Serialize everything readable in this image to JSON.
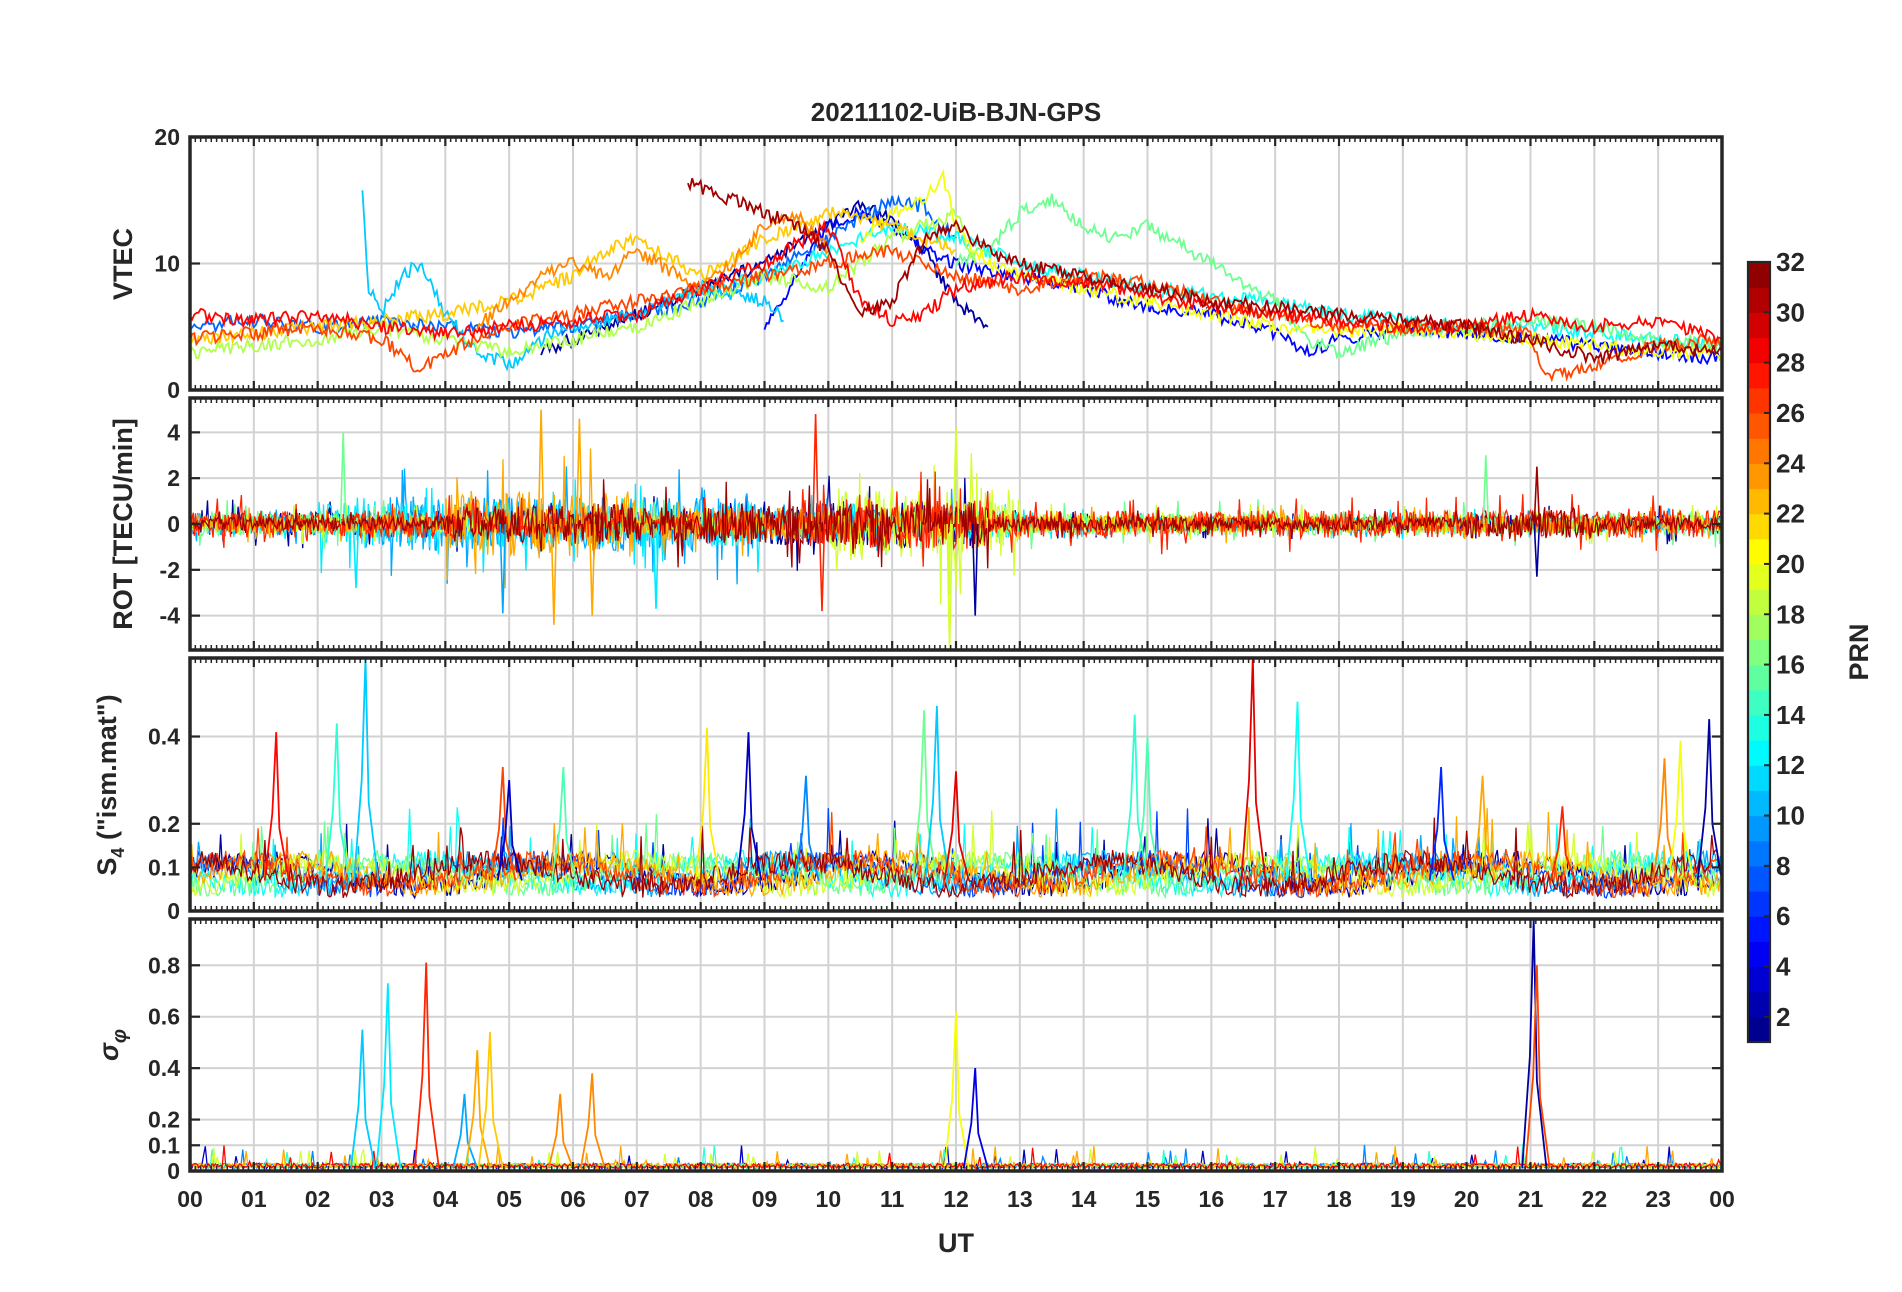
{
  "chart_data": {
    "type": "line",
    "title": "20211102-UiB-BJN-GPS",
    "xlabel": "UT",
    "x_ticks": [
      "00",
      "01",
      "02",
      "03",
      "04",
      "05",
      "06",
      "07",
      "08",
      "09",
      "10",
      "11",
      "12",
      "13",
      "14",
      "15",
      "16",
      "17",
      "18",
      "19",
      "20",
      "21",
      "22",
      "23",
      "00"
    ],
    "x_range_hours": [
      0,
      24
    ],
    "grid": true,
    "colorbar": {
      "label": "PRN",
      "range": [
        1,
        32
      ],
      "ticks": [
        "2",
        "4",
        "6",
        "8",
        "10",
        "12",
        "14",
        "16",
        "18",
        "20",
        "22",
        "24",
        "26",
        "28",
        "30",
        "32"
      ],
      "colormap": "jet",
      "placement": "right"
    },
    "panels": [
      {
        "id": "vtec",
        "ylabel": "VTEC",
        "ylim": [
          0,
          20
        ],
        "yticks": [
          "0",
          "10",
          "20"
        ],
        "series": [
          {
            "prn": 2,
            "x": [
              5.5,
              6,
              7,
              8,
              9,
              10,
              10.5,
              11,
              11.5,
              12,
              12.5
            ],
            "y": [
              3,
              4,
              6,
              8,
              10,
              13,
              14.5,
              13.5,
              11,
              7,
              5
            ]
          },
          {
            "prn": 5,
            "x": [
              9,
              9.5,
              10,
              10.5,
              11,
              11.5,
              12,
              13,
              14,
              15,
              16,
              17,
              17.5,
              18,
              19,
              20,
              21,
              22,
              23,
              24
            ],
            "y": [
              5,
              9,
              13,
              14,
              13,
              11,
              10,
              9,
              8,
              6.5,
              6,
              4.5,
              3,
              4,
              5,
              4.5,
              4,
              3.5,
              3,
              2.5
            ]
          },
          {
            "prn": 8,
            "x": [
              0,
              1,
              2,
              3,
              4,
              5,
              6,
              7,
              8,
              9,
              10,
              11,
              11.5,
              12
            ],
            "y": [
              5,
              5.5,
              5,
              5.5,
              5,
              4.5,
              5,
              6,
              7,
              9,
              12,
              15,
              14.5,
              12
            ]
          },
          {
            "prn": 11,
            "x": [
              2.7,
              2.8,
              3,
              3.3,
              3.6,
              4,
              4.5,
              5,
              5.5,
              6,
              7,
              8,
              9,
              9.3
            ],
            "y": [
              16,
              8,
              6,
              9,
              10,
              6,
              3,
              2,
              4,
              5,
              6,
              8,
              7,
              5.5
            ]
          },
          {
            "prn": 13,
            "x": [
              7.5,
              8,
              9,
              10,
              11,
              12,
              13,
              14,
              15,
              16,
              17,
              18,
              19,
              20,
              21,
              22,
              23,
              24
            ],
            "y": [
              7,
              8,
              9,
              11,
              13,
              12,
              10,
              9,
              8,
              7.5,
              7,
              6,
              5.5,
              5,
              5,
              4.5,
              4,
              3.5
            ]
          },
          {
            "prn": 16,
            "x": [
              12,
              12.5,
              13,
              13.5,
              14,
              14.5,
              15,
              16,
              17,
              17.5,
              18,
              19,
              20,
              21,
              22,
              23,
              24
            ],
            "y": [
              10,
              11,
              14,
              15,
              13,
              12,
              13,
              10,
              7,
              4,
              3,
              4.5,
              5,
              5.5,
              5,
              4,
              3.5
            ]
          },
          {
            "prn": 18,
            "x": [
              0,
              1,
              2,
              3,
              4,
              5,
              6,
              7,
              8,
              9,
              10,
              11,
              12,
              12.3
            ],
            "y": [
              3,
              3.5,
              4,
              5,
              4,
              3,
              4,
              5,
              7,
              9,
              8,
              12,
              14,
              10
            ]
          },
          {
            "prn": 20,
            "x": [
              10.5,
              11,
              11.5,
              11.8,
              12,
              12.5,
              13,
              14,
              15,
              16,
              17,
              18,
              19,
              20,
              21,
              22,
              23,
              24
            ],
            "y": [
              12,
              14,
              15,
              17,
              13,
              10,
              9,
              8,
              7,
              6,
              5,
              4.5,
              5,
              4.5,
              4,
              3.5,
              3,
              3
            ]
          },
          {
            "prn": 22,
            "x": [
              0,
              1,
              2,
              3,
              4,
              5,
              6,
              6.5,
              7,
              8,
              9,
              10,
              11,
              12
            ],
            "y": [
              4,
              4.5,
              5,
              5.5,
              6,
              7,
              9,
              11,
              12,
              9,
              12,
              14,
              13,
              11
            ]
          },
          {
            "prn": 24,
            "x": [
              4.5,
              5,
              5.5,
              6,
              6.5,
              7,
              8,
              8.5,
              9,
              9.5,
              10
            ],
            "y": [
              5,
              7,
              9,
              10,
              9,
              11,
              8,
              10,
              13,
              14,
              11
            ]
          },
          {
            "prn": 26,
            "x": [
              0,
              1,
              2,
              3,
              3.5,
              3.7,
              4,
              5,
              6,
              7,
              8,
              9,
              10,
              11,
              12,
              13,
              14,
              15,
              16,
              17,
              18,
              19,
              20,
              21,
              21.2,
              22,
              23,
              24
            ],
            "y": [
              4,
              4.5,
              5,
              4,
              2,
              2,
              3,
              5,
              6,
              7,
              8,
              9,
              10,
              11,
              9,
              8,
              9,
              8.5,
              7,
              6,
              5,
              5,
              5,
              4.5,
              1,
              2,
              3.5,
              4
            ]
          },
          {
            "prn": 28,
            "x": [
              0,
              1,
              2,
              3,
              4,
              5,
              6,
              7,
              8,
              9,
              10,
              10.5,
              11,
              11.5,
              12,
              13,
              14,
              15,
              16,
              17,
              18,
              19,
              20,
              21,
              22,
              23,
              24
            ],
            "y": [
              6,
              5.5,
              6,
              5,
              4.5,
              5,
              5.5,
              6,
              8,
              10,
              13,
              7,
              5.5,
              6,
              8,
              9,
              8.5,
              7.5,
              6.5,
              6,
              5.5,
              5,
              5,
              6,
              5,
              5.5,
              4
            ]
          },
          {
            "prn": 31,
            "x": [
              7.8,
              8,
              8.5,
              9,
              9.5,
              10,
              10.5,
              11,
              11.5,
              12,
              12.5,
              13,
              14,
              15,
              16,
              17,
              18,
              19,
              20,
              21,
              22,
              23,
              24
            ],
            "y": [
              16.5,
              16,
              15,
              14,
              13,
              11,
              6,
              7,
              12,
              13,
              11,
              10,
              9,
              8,
              7,
              6.5,
              6,
              5.5,
              5,
              4,
              2.5,
              3.5,
              3
            ]
          }
        ]
      },
      {
        "id": "rot",
        "ylabel": "ROT [TECU/min]",
        "ylim": [
          -5.5,
          5.5
        ],
        "yticks": [
          "-4",
          "-2",
          "0",
          "2",
          "4"
        ],
        "seed": 11,
        "series": [
          {
            "prn": 2,
            "amp": [
              [
                0,
                3,
                0.5
              ],
              [
                3,
                9,
                0.6
              ],
              [
                9,
                12.5,
                1.0
              ],
              [
                12.5,
                20,
                0.3
              ],
              [
                20,
                24,
                0.4
              ]
            ]
          },
          {
            "prn": 10,
            "amp": [
              [
                0,
                3,
                0.5
              ],
              [
                3,
                9,
                1.2
              ],
              [
                9,
                12,
                0.7
              ],
              [
                12,
                24,
                0.3
              ]
            ]
          },
          {
            "prn": 12,
            "amp": [
              [
                2,
                9,
                1.0
              ],
              [
                9,
                13,
                0.6
              ],
              [
                13,
                24,
                0.3
              ]
            ]
          },
          {
            "prn": 16,
            "amp": [
              [
                0,
                24,
                0.5
              ]
            ]
          },
          {
            "prn": 19,
            "amp": [
              [
                0,
                10,
                0.4
              ],
              [
                10,
                13,
                1.6
              ],
              [
                13,
                24,
                0.4
              ]
            ]
          },
          {
            "prn": 23,
            "amp": [
              [
                0,
                4,
                0.4
              ],
              [
                4,
                7,
                1.5
              ],
              [
                7,
                12,
                0.7
              ],
              [
                12,
                24,
                0.4
              ]
            ]
          },
          {
            "prn": 27,
            "amp": [
              [
                0,
                24,
                0.6
              ],
              [
                9.5,
                12.5,
                1.1
              ]
            ]
          },
          {
            "prn": 31,
            "amp": [
              [
                0,
                4,
                0.3
              ],
              [
                4,
                6,
                0.8
              ],
              [
                6,
                12.5,
                0.9
              ],
              [
                12.5,
                20,
                0.2
              ],
              [
                20,
                22,
                0.6
              ],
              [
                22,
                24,
                0.2
              ]
            ]
          }
        ],
        "spikes": [
          {
            "x": 2.4,
            "y": 4.0,
            "prn": 16
          },
          {
            "x": 2.6,
            "y": -2.8,
            "prn": 12
          },
          {
            "x": 4.9,
            "y": -3.9,
            "prn": 10
          },
          {
            "x": 5.5,
            "y": 5.0,
            "prn": 23
          },
          {
            "x": 5.7,
            "y": -4.4,
            "prn": 23
          },
          {
            "x": 6.1,
            "y": 4.6,
            "prn": 23
          },
          {
            "x": 6.3,
            "y": -4.0,
            "prn": 23
          },
          {
            "x": 7.3,
            "y": -3.7,
            "prn": 12
          },
          {
            "x": 9.8,
            "y": 4.8,
            "prn": 27
          },
          {
            "x": 9.9,
            "y": -3.8,
            "prn": 27
          },
          {
            "x": 11.9,
            "y": -5.5,
            "prn": 19
          },
          {
            "x": 12.0,
            "y": 4.2,
            "prn": 19
          },
          {
            "x": 12.3,
            "y": -4.0,
            "prn": 2
          },
          {
            "x": 20.3,
            "y": 3.0,
            "prn": 16
          },
          {
            "x": 21.1,
            "y": 2.5,
            "prn": 31
          },
          {
            "x": 21.1,
            "y": -2.3,
            "prn": 2
          }
        ]
      },
      {
        "id": "s4",
        "ylabel": "S4 (\"ism.mat\")",
        "ylim": [
          0,
          0.58
        ],
        "yticks": [
          "0",
          "0.1",
          "0.2",
          "0.4"
        ],
        "seed": 29,
        "base_prns": [
          2,
          7,
          10,
          13,
          16,
          19,
          23,
          26,
          31
        ],
        "peaks": [
          {
            "x": 1.35,
            "y": 0.41,
            "prn": 28
          },
          {
            "x": 2.3,
            "y": 0.43,
            "prn": 14
          },
          {
            "x": 2.75,
            "y": 0.58,
            "prn": 11
          },
          {
            "x": 4.9,
            "y": 0.33,
            "prn": 26
          },
          {
            "x": 5.0,
            "y": 0.3,
            "prn": 3
          },
          {
            "x": 5.85,
            "y": 0.33,
            "prn": 15
          },
          {
            "x": 8.1,
            "y": 0.42,
            "prn": 21
          },
          {
            "x": 8.75,
            "y": 0.41,
            "prn": 3
          },
          {
            "x": 9.65,
            "y": 0.31,
            "prn": 9
          },
          {
            "x": 11.5,
            "y": 0.46,
            "prn": 16
          },
          {
            "x": 11.7,
            "y": 0.47,
            "prn": 11
          },
          {
            "x": 12.0,
            "y": 0.32,
            "prn": 29
          },
          {
            "x": 14.8,
            "y": 0.45,
            "prn": 14
          },
          {
            "x": 15.0,
            "y": 0.4,
            "prn": 15
          },
          {
            "x": 16.65,
            "y": 0.58,
            "prn": 29
          },
          {
            "x": 17.35,
            "y": 0.48,
            "prn": 13
          },
          {
            "x": 19.6,
            "y": 0.33,
            "prn": 6
          },
          {
            "x": 20.25,
            "y": 0.31,
            "prn": 23
          },
          {
            "x": 21.5,
            "y": 0.24,
            "prn": 27
          },
          {
            "x": 23.1,
            "y": 0.35,
            "prn": 24
          },
          {
            "x": 23.35,
            "y": 0.39,
            "prn": 20
          },
          {
            "x": 23.8,
            "y": 0.44,
            "prn": 2
          }
        ]
      },
      {
        "id": "sigma_phi",
        "ylabel": "σφ",
        "ylim": [
          0,
          0.98
        ],
        "yticks": [
          "0",
          "0.1",
          "0.2",
          "0.4",
          "0.6",
          "0.8"
        ],
        "seed": 47,
        "base_prns": [
          3,
          9,
          14,
          19,
          23,
          28
        ],
        "peaks": [
          {
            "x": 2.7,
            "y": 0.55,
            "prn": 11
          },
          {
            "x": 3.1,
            "y": 0.73,
            "prn": 12
          },
          {
            "x": 3.7,
            "y": 0.81,
            "prn": 27
          },
          {
            "x": 4.3,
            "y": 0.3,
            "prn": 10
          },
          {
            "x": 4.5,
            "y": 0.47,
            "prn": 23
          },
          {
            "x": 4.7,
            "y": 0.54,
            "prn": 22
          },
          {
            "x": 5.8,
            "y": 0.3,
            "prn": 24
          },
          {
            "x": 6.3,
            "y": 0.38,
            "prn": 24
          },
          {
            "x": 12.0,
            "y": 0.62,
            "prn": 20
          },
          {
            "x": 12.3,
            "y": 0.4,
            "prn": 4
          },
          {
            "x": 21.05,
            "y": 0.98,
            "prn": 2
          },
          {
            "x": 21.1,
            "y": 0.8,
            "prn": 26
          }
        ]
      }
    ]
  }
}
